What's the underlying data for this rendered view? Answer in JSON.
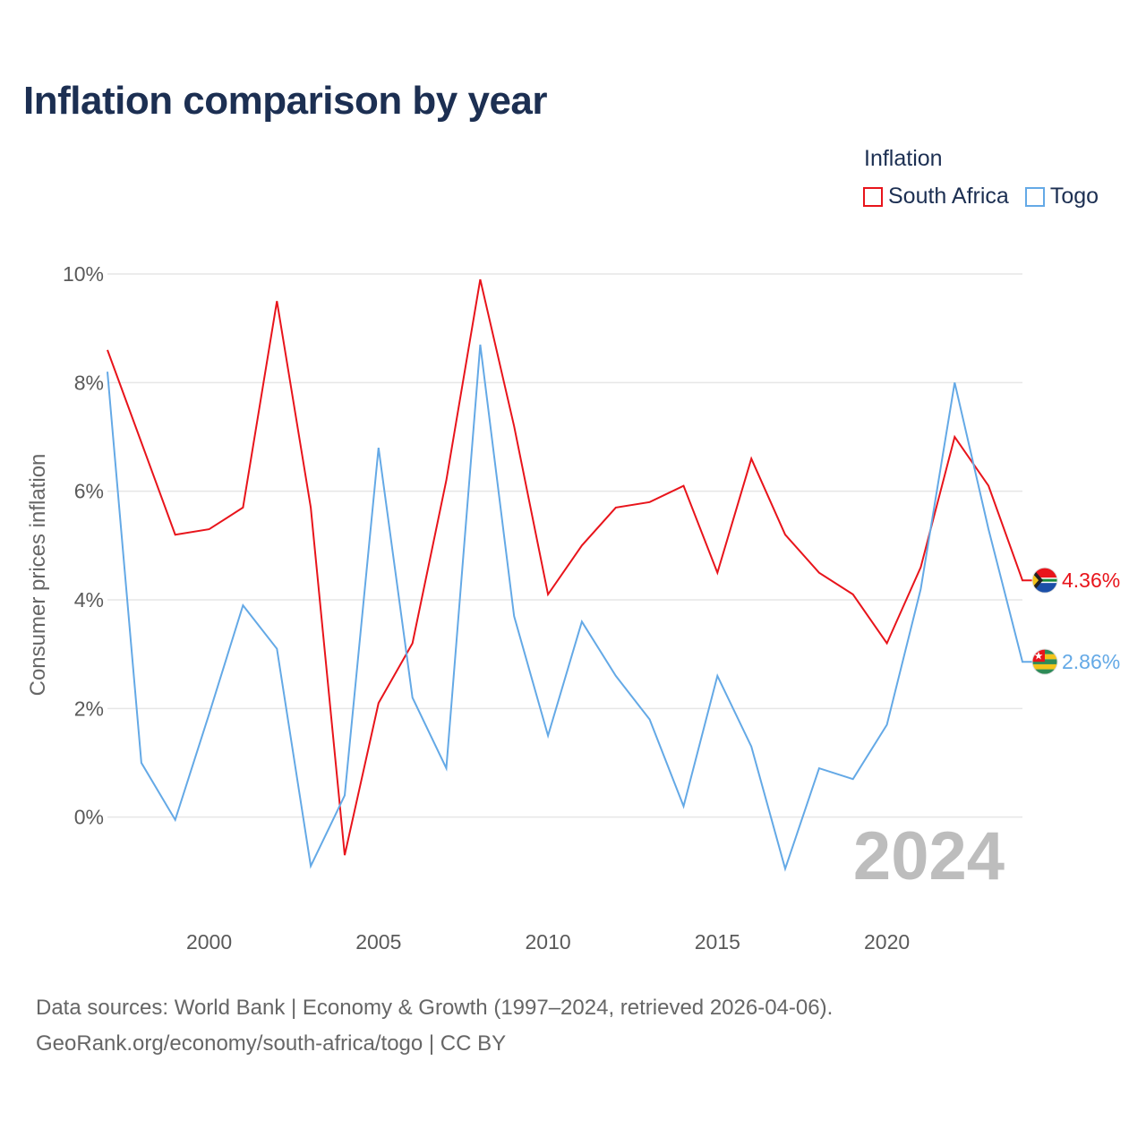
{
  "title": "Inflation comparison by year",
  "legend": {
    "title": "Inflation",
    "items": [
      {
        "label": "South Africa",
        "color": "#e8141b"
      },
      {
        "label": "Togo",
        "color": "#64a9e6"
      }
    ]
  },
  "watermark_year": "2024",
  "footer": {
    "line1": "Data sources: World Bank | Economy & Growth (1997–2024, retrieved 2026-04-06).",
    "line2": "GeoRank.org/economy/south-africa/togo | CC BY"
  },
  "chart_data": {
    "type": "line",
    "title": "Inflation comparison by year",
    "xlabel": "",
    "ylabel": "Consumer prices inflation",
    "xlim": [
      1997,
      2024
    ],
    "ylim": [
      -2,
      10
    ],
    "x_ticks": [
      2000,
      2005,
      2010,
      2015,
      2020
    ],
    "y_ticks": [
      {
        "value": 0,
        "label": "0%"
      },
      {
        "value": 2,
        "label": "2%"
      },
      {
        "value": 4,
        "label": "4%"
      },
      {
        "value": 6,
        "label": "6%"
      },
      {
        "value": 8,
        "label": "8%"
      },
      {
        "value": 10,
        "label": "10%"
      }
    ],
    "x": [
      1997,
      1998,
      1999,
      2000,
      2001,
      2002,
      2003,
      2004,
      2005,
      2006,
      2007,
      2008,
      2009,
      2010,
      2011,
      2012,
      2013,
      2014,
      2015,
      2016,
      2017,
      2018,
      2019,
      2020,
      2021,
      2022,
      2023,
      2024
    ],
    "series": [
      {
        "name": "South Africa",
        "color": "#e8141b",
        "end_label": "4.36%",
        "values": [
          8.6,
          6.9,
          5.2,
          5.3,
          5.7,
          9.5,
          5.7,
          -0.7,
          2.1,
          3.2,
          6.2,
          9.9,
          7.2,
          4.1,
          5.0,
          5.7,
          5.8,
          6.1,
          4.5,
          6.6,
          5.2,
          4.5,
          4.1,
          3.2,
          4.6,
          7.0,
          6.1,
          4.36
        ]
      },
      {
        "name": "Togo",
        "color": "#64a9e6",
        "end_label": "2.86%",
        "values": [
          8.2,
          1.0,
          -0.05,
          1.9,
          3.9,
          3.1,
          -0.9,
          0.4,
          6.8,
          2.2,
          0.9,
          8.7,
          3.7,
          1.5,
          3.6,
          2.6,
          1.8,
          0.2,
          2.6,
          1.3,
          -0.95,
          0.9,
          0.7,
          1.7,
          4.2,
          8.0,
          5.3,
          2.86
        ]
      }
    ]
  }
}
